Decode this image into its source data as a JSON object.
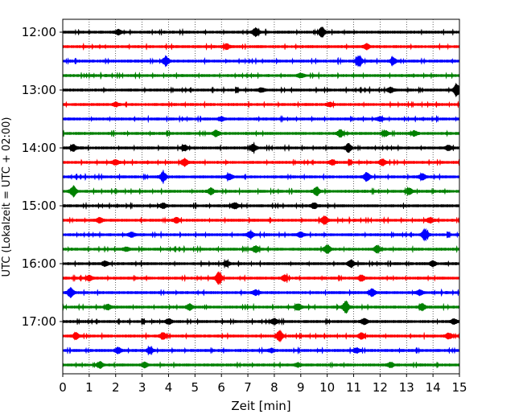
{
  "chart_data": {
    "type": "line",
    "title": "",
    "xlabel": "Zeit  [min]",
    "ylabel": "UTC (Lokalzeit = UTC + 02:00)",
    "xlim": [
      0,
      15
    ],
    "x_ticks": [
      "0",
      "1",
      "2",
      "3",
      "4",
      "5",
      "6",
      "7",
      "8",
      "9",
      "10",
      "11",
      "12",
      "13",
      "14",
      "15"
    ],
    "y_ticks": [
      "12:00",
      "13:00",
      "14:00",
      "15:00",
      "16:00",
      "17:00"
    ],
    "grid": "vertical dotted",
    "legend": "none",
    "line_colors": [
      "#000000",
      "#ff0000",
      "#0000ff",
      "#008000"
    ],
    "series": [
      {
        "start": "12:00",
        "color": "#000000",
        "events": [
          [
            7.3,
            0.7
          ],
          [
            9.8,
            0.8
          ],
          [
            2.1,
            0.4
          ]
        ]
      },
      {
        "start": "12:15",
        "color": "#ff0000",
        "events": [
          [
            6.2,
            0.4
          ],
          [
            11.5,
            0.4
          ]
        ]
      },
      {
        "start": "12:30",
        "color": "#0000ff",
        "events": [
          [
            3.9,
            0.8
          ],
          [
            11.2,
            0.9
          ],
          [
            12.5,
            0.5
          ]
        ]
      },
      {
        "start": "12:45",
        "color": "#008000",
        "events": [
          [
            9.0,
            0.3
          ]
        ]
      },
      {
        "start": "13:00",
        "color": "#000000",
        "events": [
          [
            14.9,
            1.0
          ],
          [
            12.4,
            0.4
          ],
          [
            7.5,
            0.3
          ]
        ]
      },
      {
        "start": "13:15",
        "color": "#ff0000",
        "events": [
          [
            2.0,
            0.3
          ],
          [
            10.1,
            0.3
          ]
        ]
      },
      {
        "start": "13:30",
        "color": "#0000ff",
        "events": [
          [
            6.0,
            0.3
          ],
          [
            12.0,
            0.3
          ]
        ]
      },
      {
        "start": "13:45",
        "color": "#008000",
        "events": [
          [
            10.5,
            0.6
          ],
          [
            5.8,
            0.5
          ],
          [
            13.3,
            0.4
          ],
          [
            12.2,
            0.4
          ]
        ]
      },
      {
        "start": "14:00",
        "color": "#000000",
        "events": [
          [
            7.2,
            0.6
          ],
          [
            10.8,
            0.7
          ],
          [
            4.6,
            0.5
          ],
          [
            0.4,
            0.5
          ],
          [
            14.6,
            0.4
          ]
        ]
      },
      {
        "start": "14:15",
        "color": "#ff0000",
        "events": [
          [
            4.6,
            0.6
          ],
          [
            12.1,
            0.5
          ],
          [
            10.2,
            0.4
          ],
          [
            2.0,
            0.4
          ]
        ]
      },
      {
        "start": "14:30",
        "color": "#0000ff",
        "events": [
          [
            3.8,
            0.8
          ],
          [
            11.5,
            0.7
          ],
          [
            6.3,
            0.5
          ],
          [
            13.6,
            0.5
          ]
        ]
      },
      {
        "start": "14:45",
        "color": "#008000",
        "events": [
          [
            0.4,
            0.9
          ],
          [
            9.6,
            0.7
          ],
          [
            5.6,
            0.5
          ],
          [
            13.1,
            0.5
          ]
        ]
      },
      {
        "start": "15:00",
        "color": "#000000",
        "events": [
          [
            6.5,
            0.5
          ],
          [
            9.5,
            0.5
          ],
          [
            3.8,
            0.4
          ]
        ]
      },
      {
        "start": "15:15",
        "color": "#ff0000",
        "events": [
          [
            9.9,
            0.7
          ],
          [
            1.4,
            0.4
          ],
          [
            4.3,
            0.4
          ],
          [
            13.9,
            0.4
          ]
        ]
      },
      {
        "start": "15:30",
        "color": "#0000ff",
        "events": [
          [
            13.7,
            1.0
          ],
          [
            7.1,
            0.5
          ],
          [
            9.0,
            0.4
          ],
          [
            2.6,
            0.4
          ]
        ]
      },
      {
        "start": "15:45",
        "color": "#008000",
        "events": [
          [
            10.0,
            0.8
          ],
          [
            7.3,
            0.5
          ],
          [
            11.9,
            0.6
          ],
          [
            2.4,
            0.3
          ]
        ]
      },
      {
        "start": "16:00",
        "color": "#000000",
        "events": [
          [
            10.9,
            0.6
          ],
          [
            14.0,
            0.4
          ],
          [
            6.2,
            0.4
          ],
          [
            1.6,
            0.4
          ]
        ]
      },
      {
        "start": "16:15",
        "color": "#ff0000",
        "events": [
          [
            5.9,
            1.0
          ],
          [
            8.4,
            0.5
          ],
          [
            11.3,
            0.5
          ],
          [
            1.0,
            0.4
          ]
        ]
      },
      {
        "start": "16:30",
        "color": "#0000ff",
        "events": [
          [
            0.3,
            0.8
          ],
          [
            11.7,
            0.6
          ],
          [
            7.3,
            0.4
          ],
          [
            13.5,
            0.4
          ]
        ]
      },
      {
        "start": "16:45",
        "color": "#008000",
        "events": [
          [
            10.7,
            1.0
          ],
          [
            4.8,
            0.5
          ],
          [
            8.9,
            0.5
          ],
          [
            13.6,
            0.5
          ],
          [
            1.7,
            0.4
          ]
        ]
      },
      {
        "start": "17:00",
        "color": "#000000",
        "events": [
          [
            8.0,
            0.5
          ],
          [
            11.4,
            0.5
          ],
          [
            4.0,
            0.4
          ],
          [
            14.8,
            0.4
          ]
        ]
      },
      {
        "start": "17:15",
        "color": "#ff0000",
        "events": [
          [
            8.2,
            0.9
          ],
          [
            3.8,
            0.6
          ],
          [
            11.3,
            0.5
          ],
          [
            14.6,
            0.5
          ],
          [
            0.5,
            0.5
          ]
        ]
      },
      {
        "start": "17:30",
        "color": "#0000ff",
        "events": [
          [
            2.1,
            0.5
          ],
          [
            3.3,
            0.4
          ],
          [
            11.1,
            0.4
          ],
          [
            7.9,
            0.3
          ]
        ]
      },
      {
        "start": "17:45",
        "color": "#008000",
        "events": [
          [
            1.4,
            0.5
          ],
          [
            3.1,
            0.4
          ],
          [
            12.4,
            0.4
          ],
          [
            8.9,
            0.3
          ]
        ]
      }
    ]
  }
}
